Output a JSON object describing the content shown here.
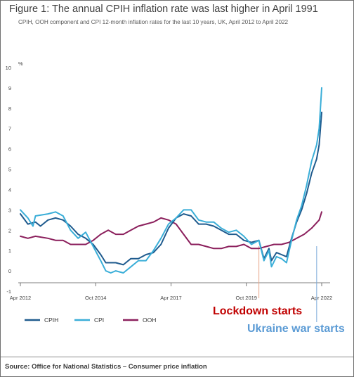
{
  "title": "Figure 1: The annual CPIH inflation rate was last higher in April 1991",
  "subtitle": "CPIH, OOH component and CPI 12-month inflation rates for the last 10 years, UK, April 2012 to April 2022",
  "source": "Source: Office for National Statistics – Consumer price inflation",
  "colors": {
    "CPIH": "#1f5b8e",
    "CPI": "#3aaed8",
    "OOH": "#8b1f5c",
    "lockdown": "#c00000",
    "ukraine": "#5b9bd5"
  },
  "chart_data": {
    "type": "line",
    "title": "Figure 1: The annual CPIH inflation rate was last higher in April 1991",
    "ylabel": "%",
    "ylim": [
      -1,
      10
    ],
    "yticks": [
      "-1",
      "0",
      "1",
      "2",
      "3",
      "4",
      "5",
      "6",
      "7",
      "8",
      "9",
      "10"
    ],
    "xrange": [
      "2012-04",
      "2022-04"
    ],
    "xticks": [
      "Apr 2012",
      "Oct 2014",
      "Apr 2017",
      "Oct 2019",
      "Apr 2022"
    ],
    "grid": false,
    "legend": "bottom-left",
    "series": [
      {
        "name": "CPIH",
        "points": [
          [
            "2012-04",
            2.8
          ],
          [
            "2012-07",
            2.3
          ],
          [
            "2012-10",
            2.4
          ],
          [
            "2012-12",
            2.2
          ],
          [
            "2013-03",
            2.5
          ],
          [
            "2013-06",
            2.6
          ],
          [
            "2013-09",
            2.5
          ],
          [
            "2013-12",
            2.2
          ],
          [
            "2014-03",
            1.8
          ],
          [
            "2014-06",
            1.6
          ],
          [
            "2014-09",
            1.3
          ],
          [
            "2014-12",
            0.8
          ],
          [
            "2015-02",
            0.4
          ],
          [
            "2015-04",
            0.4
          ],
          [
            "2015-06",
            0.4
          ],
          [
            "2015-09",
            0.3
          ],
          [
            "2015-12",
            0.6
          ],
          [
            "2016-03",
            0.6
          ],
          [
            "2016-06",
            0.8
          ],
          [
            "2016-09",
            0.9
          ],
          [
            "2016-12",
            1.3
          ],
          [
            "2017-03",
            2.1
          ],
          [
            "2017-06",
            2.6
          ],
          [
            "2017-09",
            2.8
          ],
          [
            "2017-12",
            2.7
          ],
          [
            "2018-03",
            2.3
          ],
          [
            "2018-06",
            2.3
          ],
          [
            "2018-09",
            2.2
          ],
          [
            "2018-12",
            2.0
          ],
          [
            "2019-03",
            1.8
          ],
          [
            "2019-06",
            1.8
          ],
          [
            "2019-09",
            1.5
          ],
          [
            "2019-12",
            1.4
          ],
          [
            "2020-03",
            1.5
          ],
          [
            "2020-05",
            0.6
          ],
          [
            "2020-07",
            1.1
          ],
          [
            "2020-08",
            0.5
          ],
          [
            "2020-10",
            0.9
          ],
          [
            "2020-12",
            0.8
          ],
          [
            "2021-02",
            0.7
          ],
          [
            "2021-04",
            1.6
          ],
          [
            "2021-06",
            2.4
          ],
          [
            "2021-08",
            3.0
          ],
          [
            "2021-10",
            3.8
          ],
          [
            "2021-12",
            4.8
          ],
          [
            "2022-02",
            5.5
          ],
          [
            "2022-03",
            6.2
          ],
          [
            "2022-04",
            7.8
          ]
        ]
      },
      {
        "name": "CPI",
        "points": [
          [
            "2012-04",
            3.0
          ],
          [
            "2012-07",
            2.6
          ],
          [
            "2012-09",
            2.2
          ],
          [
            "2012-10",
            2.7
          ],
          [
            "2013-03",
            2.8
          ],
          [
            "2013-06",
            2.9
          ],
          [
            "2013-09",
            2.7
          ],
          [
            "2013-12",
            2.0
          ],
          [
            "2014-03",
            1.6
          ],
          [
            "2014-06",
            1.9
          ],
          [
            "2014-09",
            1.2
          ],
          [
            "2014-12",
            0.5
          ],
          [
            "2015-02",
            0.0
          ],
          [
            "2015-04",
            -0.1
          ],
          [
            "2015-06",
            0.0
          ],
          [
            "2015-09",
            -0.1
          ],
          [
            "2015-12",
            0.2
          ],
          [
            "2016-03",
            0.5
          ],
          [
            "2016-06",
            0.5
          ],
          [
            "2016-09",
            1.0
          ],
          [
            "2016-12",
            1.6
          ],
          [
            "2017-03",
            2.3
          ],
          [
            "2017-06",
            2.6
          ],
          [
            "2017-09",
            3.0
          ],
          [
            "2017-12",
            3.0
          ],
          [
            "2018-03",
            2.5
          ],
          [
            "2018-06",
            2.4
          ],
          [
            "2018-09",
            2.4
          ],
          [
            "2018-12",
            2.1
          ],
          [
            "2019-03",
            1.9
          ],
          [
            "2019-06",
            2.0
          ],
          [
            "2019-09",
            1.7
          ],
          [
            "2019-12",
            1.3
          ],
          [
            "2020-03",
            1.5
          ],
          [
            "2020-05",
            0.5
          ],
          [
            "2020-07",
            1.0
          ],
          [
            "2020-08",
            0.2
          ],
          [
            "2020-10",
            0.7
          ],
          [
            "2020-12",
            0.6
          ],
          [
            "2021-02",
            0.4
          ],
          [
            "2021-04",
            1.5
          ],
          [
            "2021-06",
            2.5
          ],
          [
            "2021-08",
            3.2
          ],
          [
            "2021-10",
            4.2
          ],
          [
            "2021-12",
            5.4
          ],
          [
            "2022-02",
            6.2
          ],
          [
            "2022-03",
            7.0
          ],
          [
            "2022-04",
            9.0
          ]
        ]
      },
      {
        "name": "OOH",
        "points": [
          [
            "2012-04",
            1.7
          ],
          [
            "2012-07",
            1.6
          ],
          [
            "2012-10",
            1.7
          ],
          [
            "2013-03",
            1.6
          ],
          [
            "2013-06",
            1.5
          ],
          [
            "2013-09",
            1.5
          ],
          [
            "2013-12",
            1.3
          ],
          [
            "2014-03",
            1.3
          ],
          [
            "2014-06",
            1.3
          ],
          [
            "2014-09",
            1.5
          ],
          [
            "2014-12",
            1.8
          ],
          [
            "2015-03",
            2.0
          ],
          [
            "2015-06",
            1.8
          ],
          [
            "2015-09",
            1.8
          ],
          [
            "2015-12",
            2.0
          ],
          [
            "2016-03",
            2.2
          ],
          [
            "2016-06",
            2.3
          ],
          [
            "2016-09",
            2.4
          ],
          [
            "2016-12",
            2.6
          ],
          [
            "2017-03",
            2.5
          ],
          [
            "2017-06",
            2.3
          ],
          [
            "2017-09",
            1.8
          ],
          [
            "2017-12",
            1.3
          ],
          [
            "2018-03",
            1.3
          ],
          [
            "2018-06",
            1.2
          ],
          [
            "2018-09",
            1.1
          ],
          [
            "2018-12",
            1.1
          ],
          [
            "2019-03",
            1.2
          ],
          [
            "2019-06",
            1.2
          ],
          [
            "2019-09",
            1.3
          ],
          [
            "2019-12",
            1.1
          ],
          [
            "2020-03",
            1.1
          ],
          [
            "2020-06",
            1.2
          ],
          [
            "2020-09",
            1.3
          ],
          [
            "2020-12",
            1.3
          ],
          [
            "2021-03",
            1.4
          ],
          [
            "2021-06",
            1.6
          ],
          [
            "2021-09",
            1.8
          ],
          [
            "2021-12",
            2.1
          ],
          [
            "2022-03",
            2.5
          ],
          [
            "2022-04",
            2.9
          ]
        ]
      }
    ],
    "annotations": [
      {
        "text": "Lockdown starts",
        "x": "2020-03"
      },
      {
        "text": "Ukraine war starts",
        "x": "2022-02"
      }
    ]
  }
}
